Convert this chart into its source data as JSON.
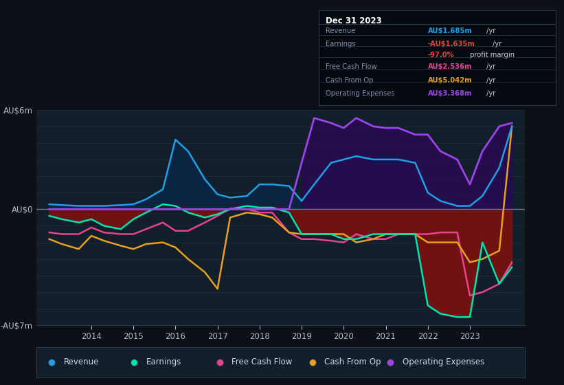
{
  "bg_color": "#0d1117",
  "plot_bg": "#131e2b",
  "grid_color": "#1e2e3e",
  "zero_line_color": "#7a8a9a",
  "ylim": [
    -7,
    6
  ],
  "xlim": [
    2012.7,
    2024.3
  ],
  "years": [
    2013.0,
    2013.3,
    2013.7,
    2014.0,
    2014.3,
    2014.7,
    2015.0,
    2015.3,
    2015.7,
    2016.0,
    2016.3,
    2016.7,
    2017.0,
    2017.3,
    2017.7,
    2018.0,
    2018.3,
    2018.7,
    2019.0,
    2019.3,
    2019.7,
    2020.0,
    2020.3,
    2020.7,
    2021.0,
    2021.3,
    2021.7,
    2022.0,
    2022.3,
    2022.7,
    2023.0,
    2023.3,
    2023.7,
    2024.0
  ],
  "revenue": [
    0.3,
    0.25,
    0.2,
    0.2,
    0.2,
    0.25,
    0.3,
    0.6,
    1.2,
    4.2,
    3.5,
    1.8,
    0.9,
    0.7,
    0.8,
    1.5,
    1.5,
    1.4,
    0.5,
    1.5,
    2.8,
    3.0,
    3.2,
    3.0,
    3.0,
    3.0,
    2.8,
    1.0,
    0.5,
    0.2,
    0.2,
    0.8,
    2.5,
    5.0
  ],
  "earnings": [
    -0.4,
    -0.6,
    -0.8,
    -0.6,
    -1.0,
    -1.2,
    -0.6,
    -0.2,
    0.3,
    0.2,
    -0.2,
    -0.5,
    -0.3,
    0.0,
    0.2,
    0.1,
    0.1,
    -0.2,
    -1.5,
    -1.5,
    -1.5,
    -1.8,
    -1.8,
    -1.5,
    -1.5,
    -1.5,
    -1.5,
    -5.8,
    -6.3,
    -6.5,
    -6.5,
    -2.0,
    -4.5,
    -3.5
  ],
  "free_cash_flow": [
    -1.4,
    -1.5,
    -1.5,
    -1.1,
    -1.4,
    -1.5,
    -1.5,
    -1.2,
    -0.8,
    -1.3,
    -1.3,
    -0.8,
    -0.4,
    0.05,
    0.0,
    -0.2,
    -0.2,
    -1.4,
    -1.8,
    -1.8,
    -1.9,
    -2.0,
    -1.5,
    -1.8,
    -1.8,
    -1.5,
    -1.5,
    -1.5,
    -1.4,
    -1.4,
    -5.2,
    -5.0,
    -4.5,
    -3.2
  ],
  "cash_from_op": [
    -1.8,
    -2.1,
    -2.4,
    -1.6,
    -1.9,
    -2.2,
    -2.4,
    -2.1,
    -2.0,
    -2.3,
    -3.0,
    -3.8,
    -4.8,
    -0.5,
    -0.2,
    -0.3,
    -0.5,
    -1.4,
    -1.5,
    -1.5,
    -1.5,
    -1.5,
    -2.0,
    -1.8,
    -1.5,
    -1.5,
    -1.5,
    -2.0,
    -2.0,
    -2.0,
    -3.2,
    -3.0,
    -2.5,
    5.0
  ],
  "operating_expenses": [
    0.0,
    0.0,
    0.0,
    0.0,
    0.0,
    0.0,
    0.0,
    0.0,
    0.0,
    0.0,
    0.0,
    0.0,
    0.0,
    0.0,
    0.0,
    0.0,
    0.0,
    0.0,
    2.8,
    5.5,
    5.2,
    4.9,
    5.5,
    5.0,
    4.9,
    4.9,
    4.5,
    4.5,
    3.5,
    3.0,
    1.5,
    3.5,
    5.0,
    5.2
  ],
  "revenue_color": "#1da1e8",
  "earnings_color": "#00e5b0",
  "fcf_color": "#e84393",
  "cashop_color": "#e8a020",
  "opex_color": "#9b45e8",
  "legend_items": [
    "Revenue",
    "Earnings",
    "Free Cash Flow",
    "Cash From Op",
    "Operating Expenses"
  ],
  "legend_colors": [
    "#1da1e8",
    "#00e5b0",
    "#e84393",
    "#e8a020",
    "#9b45e8"
  ],
  "xtick_positions": [
    2014,
    2015,
    2016,
    2017,
    2018,
    2019,
    2020,
    2021,
    2022,
    2023
  ],
  "ytick_positions": [
    -7,
    0,
    6
  ],
  "ytick_labels": [
    "-AU$7m",
    "AU$0",
    "AU$6m"
  ],
  "info_title": "Dec 31 2023",
  "info_rows": [
    {
      "label": "Revenue",
      "value": "AU$1.685m",
      "unit": "/yr",
      "color": "#1da1e8"
    },
    {
      "label": "Earnings",
      "value": "-AU$1.635m",
      "unit": "/yr",
      "color": "#e84040"
    },
    {
      "label": "",
      "value": "-97.0%",
      "unit": " profit margin",
      "color": "#e84040"
    },
    {
      "label": "Free Cash Flow",
      "value": "AU$2.536m",
      "unit": "/yr",
      "color": "#e84393"
    },
    {
      "label": "Cash From Op",
      "value": "AU$5.042m",
      "unit": "/yr",
      "color": "#e8a020"
    },
    {
      "label": "Operating Expenses",
      "value": "AU$3.368m",
      "unit": "/yr",
      "color": "#9b45e8"
    }
  ]
}
